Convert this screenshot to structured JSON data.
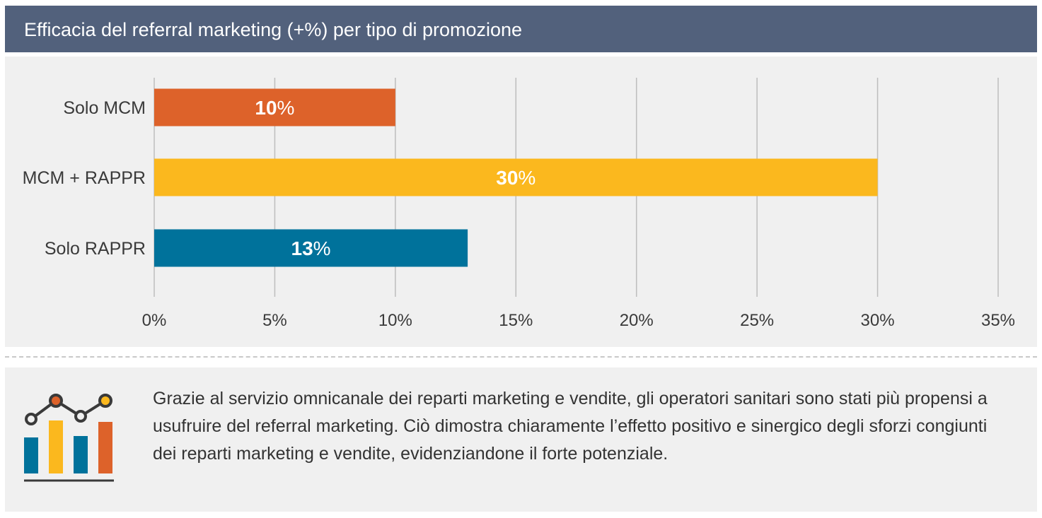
{
  "header": {
    "title": "Efficacia del referral marketing (+%) per tipo di promozione"
  },
  "chart_data": {
    "type": "bar",
    "orientation": "horizontal",
    "title": "Efficacia del referral marketing (+%) per tipo di promozione",
    "categories": [
      "Solo MCM",
      "MCM + RAPPR",
      "Solo RAPPR"
    ],
    "values": [
      10,
      30,
      13
    ],
    "value_labels": [
      "10%",
      "30%",
      "13%"
    ],
    "colors": [
      "#dd622a",
      "#fbb81e",
      "#00729b"
    ],
    "xlim": [
      0,
      35
    ],
    "x_ticks": [
      0,
      5,
      10,
      15,
      20,
      25,
      30,
      35
    ],
    "x_tick_labels": [
      "0%",
      "5%",
      "10%",
      "15%",
      "20%",
      "25%",
      "30%",
      "35%"
    ],
    "grid": "vertical",
    "legend": "none"
  },
  "note": {
    "text": "Grazie al servizio omnicanale dei reparti marketing e vendite, gli operatori sanitari sono stati più propensi a usufruire del referral marketing. Ciò dimostra chiaramente l’effetto positivo e sinergico degli sforzi congiunti dei reparti marketing e vendite, evidenziandone il forte potenziale.",
    "icon": "bar-line-chart-icon"
  }
}
